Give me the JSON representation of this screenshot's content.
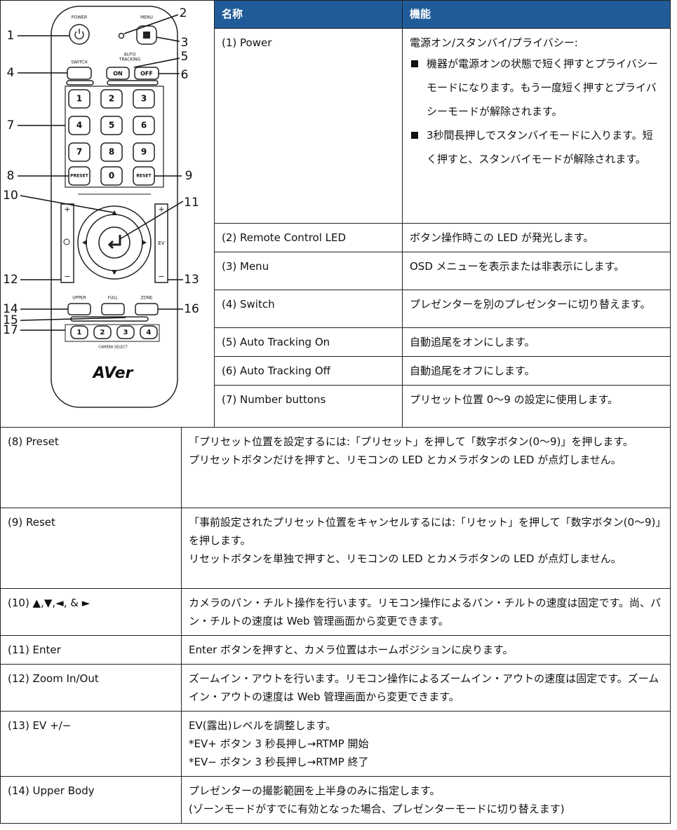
{
  "remote": {
    "callouts": [
      "1",
      "2",
      "3",
      "4",
      "5",
      "6",
      "7",
      "8",
      "9",
      "10",
      "11",
      "12",
      "13",
      "14",
      "15",
      "16",
      "17"
    ],
    "labels": {
      "power": "POWER",
      "menu": "MENU",
      "switch": "SWITCH",
      "auto": "AUTO",
      "tracking": "TRACKING",
      "on": "ON",
      "off": "OFF",
      "keys": [
        "1",
        "2",
        "3",
        "4",
        "5",
        "6",
        "7",
        "8",
        "9",
        "0"
      ],
      "preset": "PRESET",
      "reset": "RESET",
      "zoom_plus": "+",
      "zoom_minus": "−",
      "ev_plus": "+",
      "ev_minus": "−",
      "ev": "EV",
      "upper": "UPPER",
      "full": "FULL",
      "zone": "ZONE",
      "camera_keys": [
        "1",
        "2",
        "3",
        "4"
      ],
      "camera_select": "CAMERA SELECT",
      "logo": "AVer"
    }
  },
  "table": {
    "header": [
      "名称",
      "機能"
    ],
    "rows": [
      {
        "name": "(1) Power",
        "lines": [
          "電源オン/スタンバイ/プライバシー:"
        ],
        "bullets": [
          "機器が電源オンの状態で短く押すとプライバシーモードになります。もう一度短く押すとプライバシーモードが解除されます。",
          "3秒間長押しでスタンバイモードに入ります。短く押すと、スタンバイモードが解除されます。"
        ]
      },
      {
        "name": "(2) Remote Control LED",
        "lines": [
          "ボタン操作時この LED が発光します。"
        ]
      },
      {
        "name": "(3) Menu",
        "lines": [
          "OSD メニューを表示または非表示にします。"
        ]
      },
      {
        "name": "(4) Switch",
        "lines": [
          "プレゼンターを別のプレゼンターに切り替えます。"
        ]
      },
      {
        "name": "(5) Auto Tracking On",
        "lines": [
          "自動追尾をオンにします。"
        ]
      },
      {
        "name": "(6) Auto Tracking Off",
        "lines": [
          "自動追尾をオフにします。"
        ]
      },
      {
        "name": "(7) Number buttons",
        "lines": [
          "プリセット位置 0〜9 の設定に使用します。"
        ]
      },
      {
        "name": "(8) Preset",
        "lines": [
          "「プリセット位置を設定するには:「プリセット」を押して「数字ボタン(0〜9)」を押します。",
          "プリセットボタンだけを押すと、リモコンの LED とカメラボタンの LED が点灯しません。"
        ]
      },
      {
        "name": "(9) Reset",
        "lines": [
          "「事前設定されたプリセット位置をキャンセルするには:「リセット」を押して「数字ボタン(0〜9)」を押します。",
          "リセットボタンを単独で押すと、リモコンの LED とカメラボタンの LED が点灯しません。"
        ]
      },
      {
        "name": "(10) ▲,▼,◄, & ►",
        "lines": [
          "カメラのパン・チルト操作を行います。リモコン操作によるパン・チルトの速度は固定です。尚、パン・チルトの速度は Web 管理画面から変更できます。"
        ]
      },
      {
        "name": "(11) Enter",
        "lines": [
          "Enter ボタンを押すと、カメラ位置はホームポジションに戻ります。"
        ]
      },
      {
        "name": "(12) Zoom In/Out",
        "lines": [
          "ズームイン・アウトを行います。リモコン操作によるズームイン・アウトの速度は固定です。ズームイン・アウトの速度は Web 管理画面から変更できます。"
        ]
      },
      {
        "name": "(13) EV +/−",
        "lines": [
          "EV(露出)レベルを調整します。",
          "*EV+ ボタン 3 秒長押し→RTMP 開始",
          "*EV− ボタン 3 秒長押し→RTMP 終了"
        ]
      },
      {
        "name": "(14) Upper Body",
        "lines": [
          "プレゼンターの撮影範囲を上半身のみに指定します。",
          "(ゾーンモードがすでに有効となった場合、プレゼンターモードに切り替えます)"
        ]
      }
    ]
  }
}
